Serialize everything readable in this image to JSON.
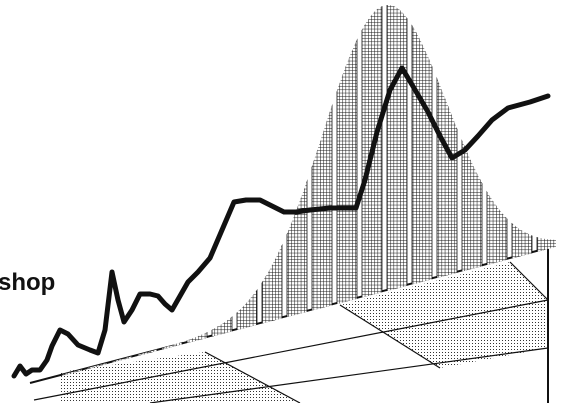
{
  "illustration": {
    "label": "shop",
    "colors": {
      "ink": "#111111",
      "background": "#ffffff"
    },
    "bar_pattern": "grid",
    "floor_pattern": "dots",
    "icon": "bell-curve-bars-with-trend-line"
  }
}
